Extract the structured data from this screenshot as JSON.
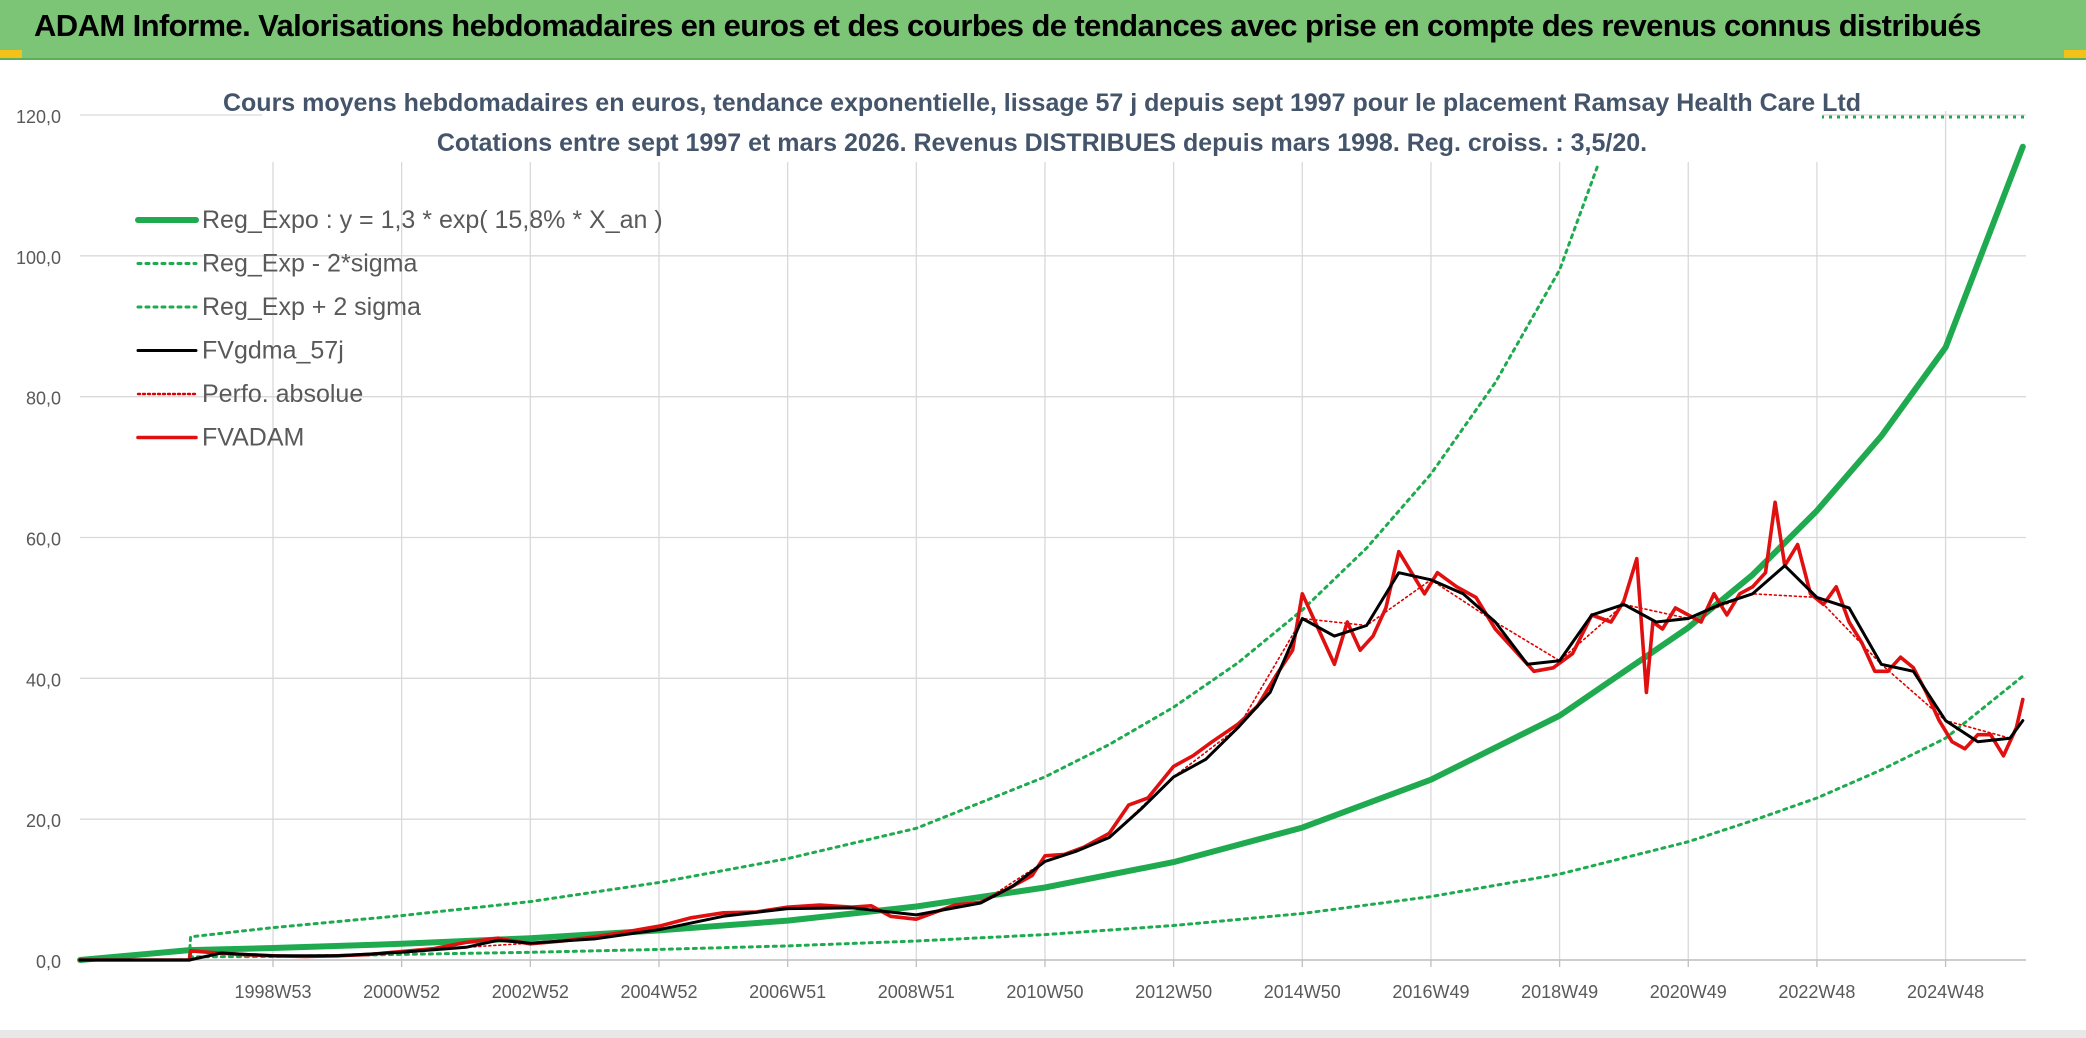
{
  "report_title": "ADAM Informe. Valorisations hebdomadaires en euros et des courbes de tendances avec prise en compte des revenus connus distribués",
  "chart_data": {
    "type": "line",
    "title": "Cours moyens hebdomadaires en euros, tendance exponentielle, lissage 57 j depuis sept 1997 pour le placement Ramsay Health Care Ltd",
    "subtitle": "Cotations entre sept 1997 et mars 2026. Revenus DISTRIBUES depuis mars 1998. Reg. croiss. : 3,5/20.",
    "xlabel": "",
    "ylabel": "",
    "ylim": [
      0,
      120
    ],
    "xlim": [
      1996.0,
      2026.25
    ],
    "yticks": [
      "0,0",
      "20,0",
      "40,0",
      "60,0",
      "80,0",
      "100,0",
      "120,0"
    ],
    "ytick_values": [
      0,
      20,
      40,
      60,
      80,
      100,
      120
    ],
    "xticks": [
      {
        "label": "1998W53",
        "x": 1999.0
      },
      {
        "label": "2000W52",
        "x": 2001.0
      },
      {
        "label": "2002W52",
        "x": 2003.0
      },
      {
        "label": "2004W52",
        "x": 2005.0
      },
      {
        "label": "2006W51",
        "x": 2007.0
      },
      {
        "label": "2008W51",
        "x": 2009.0
      },
      {
        "label": "2010W50",
        "x": 2011.0
      },
      {
        "label": "2012W50",
        "x": 2013.0
      },
      {
        "label": "2014W50",
        "x": 2015.0
      },
      {
        "label": "2016W49",
        "x": 2017.0
      },
      {
        "label": "2018W49",
        "x": 2019.0
      },
      {
        "label": "2020W49",
        "x": 2021.0
      },
      {
        "label": "2022W48",
        "x": 2023.0
      },
      {
        "label": "2024W48",
        "x": 2025.0
      }
    ],
    "grid": true,
    "legend_position": "top-left",
    "colors": {
      "reg_expo": "#1faa50",
      "sigma": "#1faa50",
      "fvgdma": "#000000",
      "perfo": "#e00000",
      "fvadam": "#e01010",
      "grid": "#d9d9d9",
      "axis_text": "#595959"
    },
    "series": [
      {
        "name": "Reg_Expo : y = 1,3 * exp( 15,8% *  X_an )",
        "style": "solid-thick",
        "x": [
          1996.0,
          1997.7,
          1999.0,
          2001.0,
          2003.0,
          2005.0,
          2007.0,
          2009.0,
          2011.0,
          2013.0,
          2015.0,
          2017.0,
          2019.0,
          2021.0,
          2022.0,
          2023.0,
          2024.0,
          2025.0,
          2026.2
        ],
        "y": [
          0,
          1.4,
          1.7,
          2.3,
          3.1,
          4.2,
          5.6,
          7.6,
          10.3,
          13.9,
          18.8,
          25.6,
          34.7,
          47.2,
          54.7,
          63.8,
          74.4,
          87.0,
          115.5
        ]
      },
      {
        "name": "Reg_Exp - 2*sigma",
        "style": "dotted",
        "x": [
          1997.7,
          1999.0,
          2001.0,
          2003.0,
          2005.0,
          2007.0,
          2009.0,
          2011.0,
          2013.0,
          2015.0,
          2017.0,
          2019.0,
          2021.0,
          2022.0,
          2023.0,
          2024.0,
          2025.0,
          2026.2
        ],
        "y": [
          0.45,
          0.5,
          0.8,
          1.1,
          1.5,
          2.0,
          2.7,
          3.6,
          4.9,
          6.6,
          9.0,
          12.2,
          16.8,
          19.8,
          23.0,
          27.0,
          31.5,
          40.3
        ]
      },
      {
        "name": "Reg_Exp + 2 sigma",
        "style": "dotted",
        "x": [
          1997.7,
          1997.72,
          1999.0,
          2001.0,
          2003.0,
          2005.0,
          2007.0,
          2009.0,
          2011.0,
          2012.0,
          2013.0,
          2014.0,
          2015.0,
          2016.0,
          2017.0,
          2018.0,
          2019.0,
          2019.6
        ],
        "y": [
          0.5,
          3.3,
          4.6,
          6.3,
          8.3,
          11.0,
          14.4,
          18.7,
          26.0,
          30.6,
          35.9,
          42.2,
          49.7,
          58.5,
          69.0,
          82.0,
          98.0,
          113.0
        ]
      },
      {
        "name": "FVgdma_57j",
        "style": "solid",
        "x": [
          1996.0,
          1997.7,
          1998.2,
          1999.0,
          2000.0,
          2001.0,
          2002.0,
          2002.5,
          2003.0,
          2004.0,
          2005.0,
          2006.0,
          2007.0,
          2008.0,
          2009.0,
          2010.0,
          2010.5,
          2011.0,
          2011.5,
          2012.0,
          2012.5,
          2013.0,
          2013.5,
          2014.0,
          2014.5,
          2015.0,
          2015.5,
          2016.0,
          2016.5,
          2017.0,
          2017.5,
          2018.0,
          2018.5,
          2019.0,
          2019.5,
          2020.0,
          2020.5,
          2021.0,
          2021.5,
          2022.0,
          2022.5,
          2023.0,
          2023.5,
          2024.0,
          2024.5,
          2025.0,
          2025.5,
          2026.0,
          2026.2
        ],
        "y": [
          0,
          0,
          1.0,
          0.6,
          0.6,
          1.1,
          1.8,
          2.8,
          2.4,
          3.0,
          4.3,
          6.2,
          7.3,
          7.4,
          6.4,
          8.1,
          10.5,
          14.0,
          15.5,
          17.4,
          21.5,
          26.0,
          28.5,
          33.0,
          38.0,
          48.5,
          46.0,
          47.5,
          55.0,
          54.0,
          52.0,
          48.0,
          42.0,
          42.5,
          49.0,
          50.5,
          48.0,
          48.5,
          50.5,
          52.0,
          56.0,
          51.5,
          50.0,
          42.0,
          41.0,
          34.0,
          31.0,
          31.5,
          34.0
        ]
      },
      {
        "name": "Perfo. absolue",
        "style": "dotted-thin",
        "x": [
          1996.0,
          1997.7,
          1998.2,
          1999.0,
          2000.0,
          2001.0,
          2002.0,
          2003.0,
          2004.0,
          2005.0,
          2006.0,
          2007.0,
          2008.0,
          2009.0,
          2010.0,
          2011.0,
          2012.0,
          2013.0,
          2014.0,
          2015.0,
          2016.0,
          2017.0,
          2018.0,
          2019.0,
          2020.0,
          2021.0,
          2022.0,
          2023.0,
          2024.0,
          2025.0,
          2026.0,
          2026.2
        ],
        "y": [
          0,
          0,
          1.0,
          0.6,
          0.6,
          1.1,
          1.8,
          2.4,
          3.0,
          4.3,
          6.2,
          7.3,
          7.4,
          6.4,
          8.1,
          14.0,
          17.4,
          26.0,
          33.0,
          48.5,
          47.5,
          54.0,
          48.0,
          42.5,
          50.5,
          48.5,
          52.0,
          51.5,
          42.0,
          34.0,
          31.5,
          34.0
        ]
      },
      {
        "name": "FVADAM",
        "style": "solid-thick",
        "x": [
          1996.0,
          1997.7,
          1997.72,
          1998.0,
          1998.5,
          1999.0,
          1999.5,
          2000.0,
          2000.5,
          2001.0,
          2001.5,
          2002.0,
          2002.5,
          2002.8,
          2003.0,
          2003.5,
          2004.0,
          2004.5,
          2005.0,
          2005.5,
          2006.0,
          2006.5,
          2007.0,
          2007.5,
          2008.0,
          2008.3,
          2008.6,
          2009.0,
          2009.3,
          2009.6,
          2010.0,
          2010.4,
          2010.8,
          2011.0,
          2011.3,
          2011.6,
          2012.0,
          2012.3,
          2012.6,
          2013.0,
          2013.3,
          2013.6,
          2014.0,
          2014.3,
          2014.6,
          2014.85,
          2015.0,
          2015.3,
          2015.5,
          2015.7,
          2015.9,
          2016.1,
          2016.3,
          2016.5,
          2016.7,
          2016.9,
          2017.1,
          2017.4,
          2017.7,
          2018.0,
          2018.3,
          2018.6,
          2018.9,
          2019.2,
          2019.5,
          2019.8,
          2020.0,
          2020.2,
          2020.35,
          2020.45,
          2020.6,
          2020.8,
          2021.0,
          2021.2,
          2021.4,
          2021.6,
          2021.8,
          2022.0,
          2022.2,
          2022.35,
          2022.5,
          2022.7,
          2022.9,
          2023.1,
          2023.3,
          2023.5,
          2023.7,
          2023.9,
          2024.1,
          2024.3,
          2024.5,
          2024.7,
          2024.9,
          2025.1,
          2025.3,
          2025.5,
          2025.7,
          2025.9,
          2026.0,
          2026.1,
          2026.2
        ],
        "y": [
          0,
          0,
          1.3,
          1.1,
          0.8,
          0.6,
          0.5,
          0.6,
          0.8,
          1.2,
          1.6,
          2.5,
          3.1,
          2.6,
          2.3,
          2.7,
          3.3,
          4.0,
          4.8,
          6.0,
          6.7,
          6.8,
          7.5,
          7.8,
          7.5,
          7.7,
          6.2,
          5.8,
          6.8,
          7.8,
          8.2,
          10.0,
          12.0,
          14.8,
          15.0,
          16.0,
          18.0,
          22.0,
          23.0,
          27.5,
          29.0,
          31.0,
          33.5,
          36.0,
          40.5,
          44.0,
          52.0,
          46.0,
          42.0,
          48.0,
          44.0,
          46.0,
          50.0,
          58.0,
          55.0,
          52.0,
          55.0,
          53.0,
          51.5,
          47.0,
          44.0,
          41.0,
          41.5,
          43.5,
          49.0,
          48.0,
          51.0,
          57.0,
          38.0,
          48.0,
          47.0,
          50.0,
          49.0,
          48.0,
          52.0,
          49.0,
          52.0,
          53.0,
          55.0,
          65.0,
          56.0,
          59.0,
          52.0,
          50.5,
          53.0,
          48.0,
          45.0,
          41.0,
          41.0,
          43.0,
          41.5,
          38.0,
          34.0,
          31.0,
          30.0,
          32.0,
          32.0,
          29.0,
          31.0,
          33.0,
          37.0
        ]
      }
    ]
  }
}
